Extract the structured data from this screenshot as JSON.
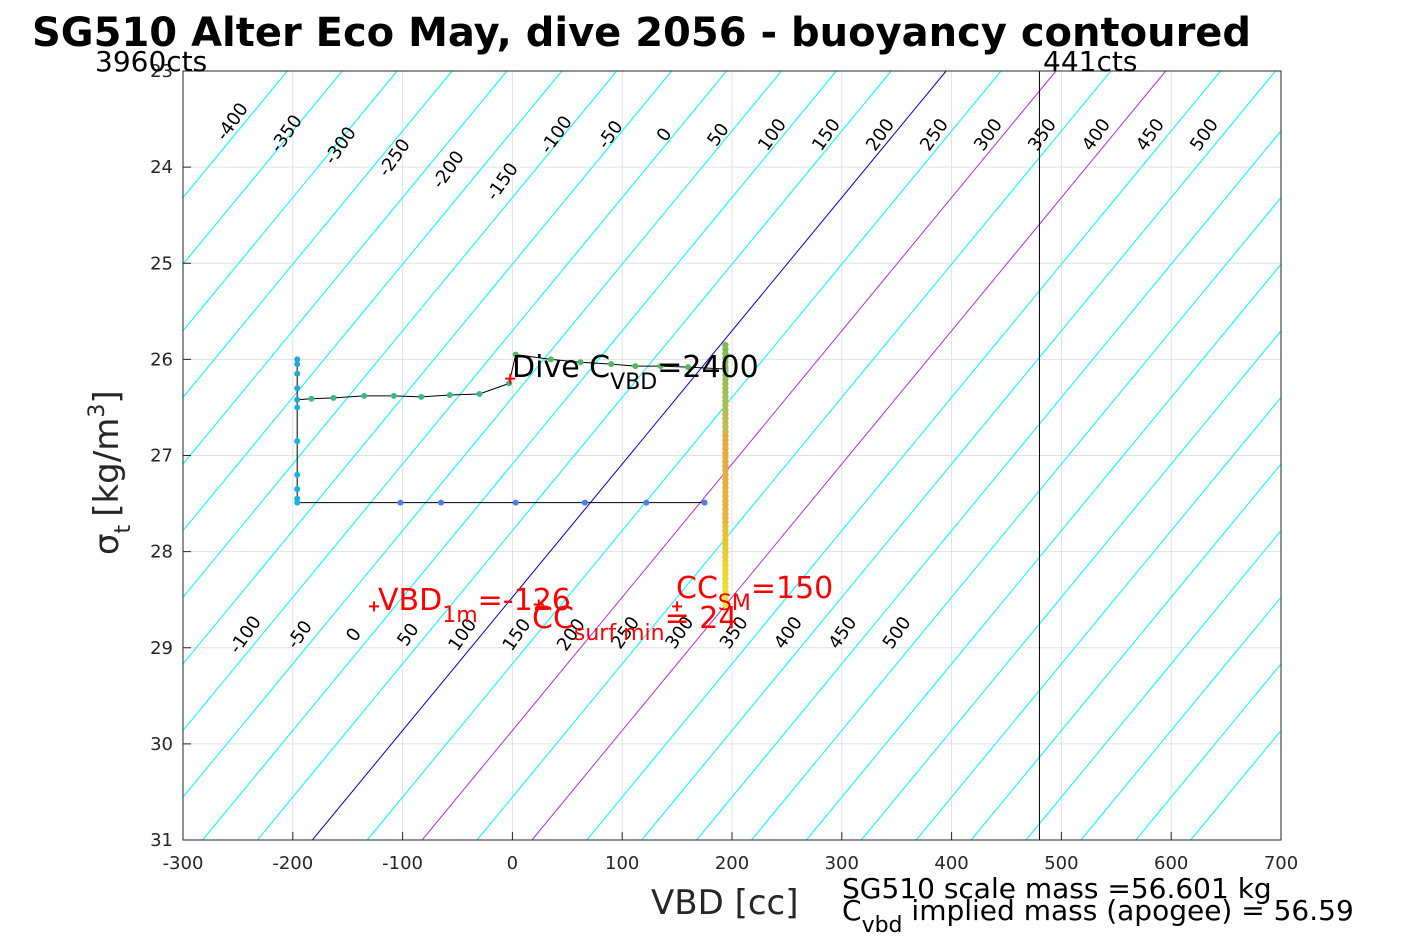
{
  "title": "SG510 Alter Eco May, dive 2056 - buoyancy contoured",
  "colors": {
    "contour": "#00ffff",
    "zero_contour": "#0000cd",
    "highlight_contour": "#b030e0",
    "grid": "#e0e0e0",
    "annotation": "#ff0000",
    "track_line": "#000000"
  },
  "chart_data": {
    "type": "scatter",
    "xlabel": "VBD [cc]",
    "ylabel": "σ_t [kg/m^3]",
    "ylabel_parts": {
      "sym": "σ",
      "sub": "t",
      "unit_pre": "[kg/m",
      "sup": "3",
      "unit_post": "]"
    },
    "xlim": [
      -300,
      700
    ],
    "ylim": [
      23,
      31
    ],
    "y_reversed": true,
    "grid": true,
    "xticks": [
      -300,
      -200,
      -100,
      0,
      100,
      200,
      300,
      400,
      500,
      600,
      700
    ],
    "xtick_labels": [
      "-300",
      "-200",
      "-100",
      "0",
      "100",
      "200",
      "300",
      "400",
      "500",
      "600",
      "700"
    ],
    "yticks": [
      23,
      24,
      25,
      26,
      27,
      28,
      29,
      30,
      31
    ],
    "ytick_labels": [
      "23",
      "24",
      "25",
      "26",
      "27",
      "28",
      "29",
      "30",
      "31"
    ],
    "contour_levels": [
      -400,
      -350,
      -300,
      -250,
      -200,
      -150,
      -100,
      -50,
      0,
      50,
      100,
      150,
      200,
      250,
      300,
      350,
      400,
      450,
      500
    ],
    "contour_upper_labels": [
      "-400",
      "-350",
      "-300",
      "-250",
      "-200",
      "-150",
      "-100",
      "-50",
      "0",
      "50",
      "100",
      "150",
      "200",
      "250",
      "300",
      "350",
      "400",
      "450",
      "500"
    ],
    "contour_lower_labels": [
      "-100",
      "-50",
      "0",
      "50",
      "100",
      "150",
      "200",
      "250",
      "300",
      "350",
      "400",
      "450",
      "500"
    ],
    "highlight_levels": [
      100,
      200
    ],
    "vertical_line_x": 480,
    "corner_left": "3960cts",
    "corner_right": "441cts",
    "dive_track": [
      {
        "x": -196,
        "y": 26.0
      },
      {
        "x": -196,
        "y": 26.05
      },
      {
        "x": -196,
        "y": 26.15
      },
      {
        "x": -196,
        "y": 26.3
      },
      {
        "x": -196,
        "y": 26.42
      },
      {
        "x": -183,
        "y": 26.41
      },
      {
        "x": -163,
        "y": 26.4
      },
      {
        "x": -135,
        "y": 26.38
      },
      {
        "x": -108,
        "y": 26.38
      },
      {
        "x": -83,
        "y": 26.39
      },
      {
        "x": -57,
        "y": 26.37
      },
      {
        "x": -30,
        "y": 26.36
      },
      {
        "x": -3,
        "y": 26.25
      },
      {
        "x": 3,
        "y": 25.95
      },
      {
        "x": 35,
        "y": 26.0
      },
      {
        "x": 62,
        "y": 26.03
      },
      {
        "x": 90,
        "y": 26.05
      },
      {
        "x": 112,
        "y": 26.07
      },
      {
        "x": 135,
        "y": 26.07
      },
      {
        "x": 160,
        "y": 26.08
      },
      {
        "x": 194,
        "y": 26.1
      }
    ],
    "climb_track": [
      {
        "x": 194,
        "y": 25.88
      },
      {
        "x": 194,
        "y": 26.2
      },
      {
        "x": 194,
        "y": 26.6
      },
      {
        "x": 194,
        "y": 27.0
      },
      {
        "x": 194,
        "y": 27.4
      },
      {
        "x": 194,
        "y": 27.8
      },
      {
        "x": 194,
        "y": 28.2
      },
      {
        "x": 194,
        "y": 28.55
      }
    ],
    "apogee_track": [
      {
        "x": -196,
        "y": 26.5
      },
      {
        "x": -196,
        "y": 26.85
      },
      {
        "x": -196,
        "y": 27.2
      },
      {
        "x": -196,
        "y": 27.35
      },
      {
        "x": -196,
        "y": 27.45
      },
      {
        "x": -196,
        "y": 27.49
      },
      {
        "x": -102,
        "y": 27.49
      },
      {
        "x": -65,
        "y": 27.49
      },
      {
        "x": 3,
        "y": 27.49
      },
      {
        "x": 66,
        "y": 27.49
      },
      {
        "x": 122,
        "y": 27.49
      },
      {
        "x": 175,
        "y": 27.49
      }
    ],
    "markers": [
      {
        "x": -2,
        "y": 26.2
      },
      {
        "x": -126,
        "y": 28.57
      },
      {
        "x": 24,
        "y": 28.55
      },
      {
        "x": 150,
        "y": 28.57
      }
    ],
    "annotations": {
      "dive_cvbd": {
        "main": "Dive C",
        "sub": "VBD",
        "tail": "=2400"
      },
      "vbd_1m": {
        "main": "VBD",
        "sub": "1m",
        "tail": "=-126"
      },
      "cc_surf": {
        "main": "CC",
        "sub": "surf min",
        "tail": "= 24"
      },
      "cc_sm": {
        "main": "CC",
        "sub": "SM",
        "tail": "=150"
      }
    },
    "mass_text_1": "SG510 scale mass =56.601 kg",
    "mass_text_2": {
      "main": "C",
      "sub": "vbd",
      "tail": " implied mass (apogee) = 56.59"
    }
  }
}
